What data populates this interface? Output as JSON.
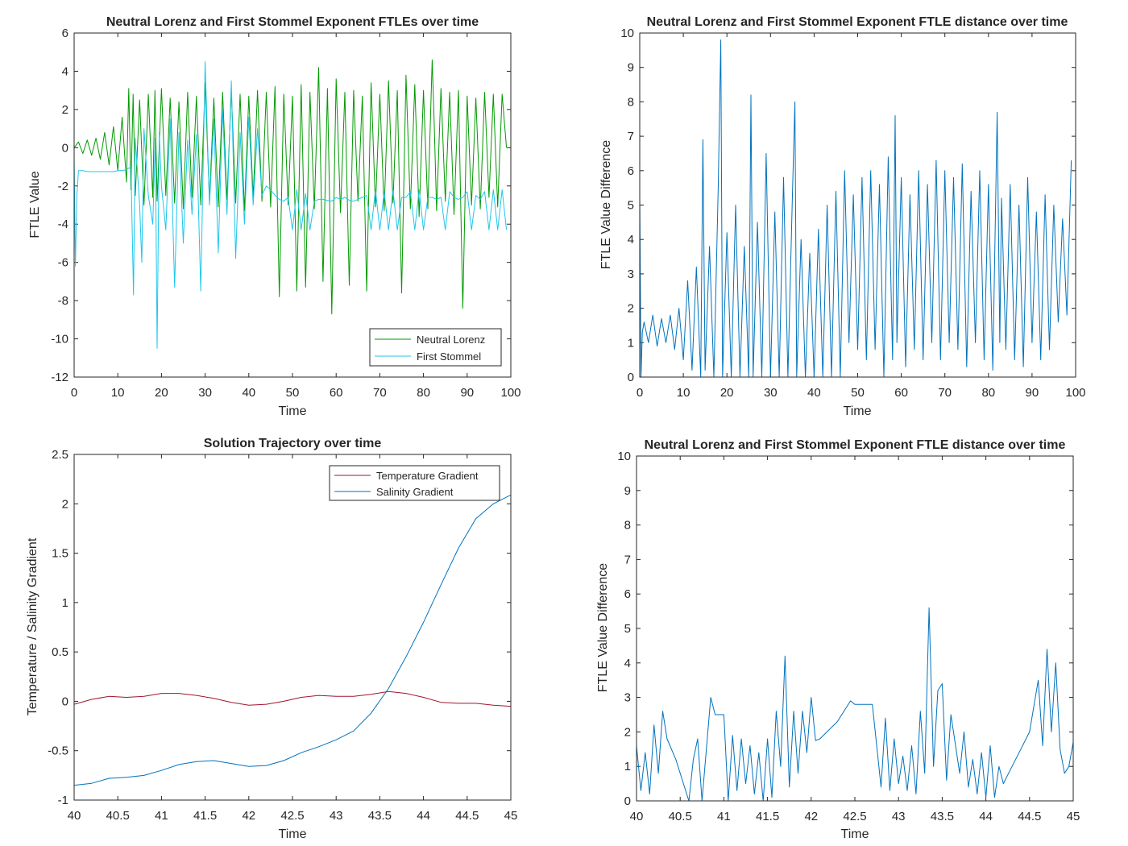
{
  "chart_data": [
    {
      "id": "p1",
      "type": "line",
      "title": "Neutral Lorenz and First Stommel Exponent FTLEs over time",
      "xlabel": "Time",
      "ylabel": "FTLE Value",
      "xlim": [
        0,
        100
      ],
      "ylim": [
        -12,
        6
      ],
      "xticks": [
        0,
        10,
        20,
        30,
        40,
        50,
        60,
        70,
        80,
        90,
        100
      ],
      "yticks": [
        -12,
        -10,
        -8,
        -6,
        -4,
        -2,
        0,
        2,
        4,
        6
      ],
      "legend_position": "bottom-right",
      "series": [
        {
          "name": "Neutral Lorenz",
          "color": "#009900",
          "x": [
            0,
            1,
            2,
            3,
            4,
            5,
            6,
            7,
            8,
            9,
            10,
            11,
            12,
            12.5,
            13,
            13.5,
            14,
            15,
            16,
            17,
            18,
            18.5,
            19,
            20,
            21,
            22,
            23,
            24,
            25,
            26,
            27,
            28,
            29,
            30,
            31,
            32,
            33,
            34,
            35,
            36,
            37,
            38,
            39,
            40,
            41,
            42,
            43,
            44,
            45,
            46,
            47,
            48,
            49,
            50,
            51,
            52,
            53,
            54,
            55,
            56,
            57,
            58,
            59,
            60,
            61,
            62,
            63,
            64,
            65,
            66,
            67,
            68,
            69,
            70,
            71,
            72,
            73,
            74,
            75,
            76,
            77,
            78,
            79,
            80,
            81,
            82,
            82.5,
            83,
            84,
            85,
            86,
            87,
            88,
            89,
            90,
            91,
            92,
            93,
            94,
            95,
            96,
            97,
            98,
            99
          ],
          "values": [
            0,
            0.3,
            -0.3,
            0.4,
            -0.4,
            0.5,
            -0.6,
            0.8,
            -0.9,
            1.1,
            -1.2,
            1.6,
            -1.8,
            3.1,
            -2.2,
            2.8,
            -2.5,
            2.5,
            -3.0,
            2.8,
            -2.6,
            3.0,
            -2.8,
            3.1,
            -2.5,
            2.6,
            -2.9,
            2.4,
            -3.2,
            2.9,
            -2.6,
            2.7,
            -3.0,
            3.4,
            -2.8,
            2.6,
            -3.1,
            2.9,
            -2.7,
            3.0,
            -2.9,
            2.8,
            -3.3,
            2.7,
            -2.6,
            3.0,
            -2.8,
            2.9,
            -3.1,
            3.2,
            -7.8,
            2.8,
            -3.0,
            2.7,
            -7.5,
            3.3,
            -7.3,
            2.9,
            -3.2,
            4.2,
            -7.0,
            3.1,
            -8.7,
            3.6,
            -3.4,
            2.9,
            -7.2,
            3.0,
            -2.8,
            2.7,
            -7.5,
            3.4,
            -3.1,
            2.8,
            -3.3,
            3.5,
            -2.9,
            3.0,
            -7.6,
            3.8,
            -3.2,
            3.3,
            -3.6,
            3.0,
            -3.2,
            4.6,
            1.0,
            -3.3,
            3.1,
            -2.8,
            2.9,
            -3.5,
            3.0,
            -8.4,
            2.7,
            -3.0,
            2.6,
            -3.2,
            2.9,
            -2.6,
            2.8,
            -3.1,
            2.8,
            0
          ]
        },
        {
          "name": "First Stommel",
          "color": "#1fc6ec",
          "x": [
            0,
            0.3,
            0.6,
            1,
            2,
            3,
            4,
            5,
            6,
            7,
            8,
            9,
            10,
            11,
            12,
            13,
            13.6,
            14,
            15,
            15.5,
            16,
            17,
            18,
            18.6,
            19,
            19.5,
            20,
            21,
            22,
            23,
            24,
            25,
            26,
            27,
            28,
            29,
            30,
            31,
            32,
            33,
            34,
            35,
            36,
            37,
            38,
            39,
            40,
            41,
            42,
            43,
            44,
            45,
            46,
            47,
            48,
            49,
            50,
            51,
            52,
            53,
            54,
            55,
            56,
            57,
            58,
            59,
            60,
            61,
            62,
            63,
            64,
            65,
            66,
            67,
            68,
            69,
            70,
            71,
            72,
            73,
            74,
            75,
            76,
            77,
            78,
            79,
            80,
            81,
            82,
            83,
            84,
            85,
            86,
            87,
            88,
            89,
            90,
            91,
            92,
            93,
            94,
            95,
            96,
            97,
            98,
            99
          ],
          "values": [
            -0.5,
            -6.2,
            -2.6,
            -1.2,
            -1.2,
            -1.25,
            -1.25,
            -1.25,
            -1.25,
            -1.25,
            -1.25,
            -1.25,
            -1.2,
            -1.2,
            -1.15,
            -1.0,
            -7.7,
            0.5,
            -3.0,
            -6.0,
            1.0,
            -2.5,
            -4.0,
            0.5,
            -10.5,
            0.8,
            -2.0,
            -4.3,
            1.5,
            -7.3,
            0.8,
            -5.0,
            0.4,
            -3.5,
            0.7,
            -7.5,
            4.5,
            -3.0,
            1.5,
            -5.5,
            2.0,
            -3.5,
            3.5,
            -5.8,
            0.8,
            -4.0,
            1.6,
            -3.0,
            1.0,
            -2.5,
            -2.0,
            -2.2,
            -2.5,
            -2.7,
            -2.8,
            -2.6,
            -4.3,
            -2.2,
            -4.3,
            -2.4,
            -4.3,
            -2.8,
            -2.7,
            -2.7,
            -2.75,
            -2.8,
            -2.6,
            -2.7,
            -2.6,
            -2.75,
            -2.8,
            -2.7,
            -2.6,
            -2.5,
            -4.3,
            -2.2,
            -4.3,
            -2.3,
            -4.3,
            -2.2,
            -4.3,
            -2.6,
            -2.6,
            -2.3,
            -4.3,
            -2.2,
            -4.3,
            -2.6,
            -2.6,
            -2.7,
            -2.6,
            -4.3,
            -2.3,
            -2.6,
            -2.7,
            -2.6,
            -2.3,
            -4.3,
            -2.5,
            -2.7,
            -2.3,
            -4.3,
            -2.2,
            -4.3,
            -2.2,
            -4.3
          ]
        }
      ]
    },
    {
      "id": "p2",
      "type": "line",
      "title": "Neutral Lorenz and First Stommel Exponent FTLE distance over time",
      "xlabel": "Time",
      "ylabel": "FTLE Value Difference",
      "xlim": [
        0,
        100
      ],
      "ylim": [
        0,
        10
      ],
      "xticks": [
        0,
        10,
        20,
        30,
        40,
        50,
        60,
        70,
        80,
        90,
        100
      ],
      "yticks": [
        0,
        1,
        2,
        3,
        4,
        5,
        6,
        7,
        8,
        9,
        10
      ],
      "series": [
        {
          "name": "FTLE distance",
          "color": "#0072bd",
          "x": [
            0,
            0.3,
            0.6,
            1,
            2,
            3,
            4,
            5,
            6,
            7,
            8,
            9,
            10,
            11,
            12,
            13,
            14,
            14.5,
            15,
            16,
            17,
            18,
            18.6,
            19,
            20,
            21,
            22,
            23,
            24,
            25,
            25.5,
            26,
            27,
            28,
            29,
            30,
            31,
            32,
            33,
            34,
            35,
            35.6,
            36,
            37,
            38,
            39,
            40,
            41,
            42,
            43,
            44,
            45,
            46,
            47,
            48,
            49,
            50,
            51,
            52,
            53,
            54,
            55,
            56,
            57,
            58,
            58.6,
            59,
            60,
            61,
            62,
            63,
            64,
            65,
            66,
            67,
            68,
            69,
            70,
            71,
            72,
            73,
            74,
            75,
            76,
            77,
            78,
            79,
            80,
            81,
            82,
            82.6,
            83,
            84,
            85,
            86,
            87,
            88,
            89,
            90,
            91,
            92,
            93,
            94,
            95,
            96,
            97,
            98,
            99
          ],
          "values": [
            5.3,
            0,
            1.3,
            1.6,
            1.0,
            1.8,
            0.9,
            1.7,
            1.0,
            1.8,
            0.8,
            2.0,
            0.5,
            2.8,
            0.2,
            3.2,
            0,
            6.9,
            0.2,
            3.8,
            0,
            5.5,
            9.8,
            0,
            4.2,
            0,
            5.0,
            0,
            3.8,
            0,
            8.2,
            0,
            4.5,
            0,
            6.5,
            0,
            4.8,
            0,
            5.8,
            0,
            5.2,
            8.0,
            0,
            4.0,
            0,
            3.6,
            0,
            4.3,
            0,
            5.0,
            0,
            5.4,
            0,
            6.0,
            1.0,
            5.3,
            0.8,
            5.8,
            0.5,
            6.0,
            0.8,
            5.6,
            0,
            6.4,
            0.5,
            7.6,
            1.0,
            5.8,
            0.3,
            5.3,
            0.8,
            6.0,
            0.5,
            5.6,
            1.0,
            6.3,
            0.5,
            6.0,
            1.0,
            5.8,
            0.8,
            6.2,
            0.3,
            5.4,
            1.0,
            6.0,
            0.5,
            5.6,
            0.2,
            7.7,
            1.0,
            5.2,
            0.8,
            5.6,
            0.5,
            5.0,
            0.3,
            5.8,
            1.0,
            4.8,
            0.5,
            5.3,
            0.8,
            5.0,
            1.6,
            4.6,
            1.8,
            6.3
          ]
        }
      ]
    },
    {
      "id": "p3",
      "type": "line",
      "title": "Solution Trajectory over time",
      "xlabel": "Time",
      "ylabel": "Temperature / Salinity Gradient",
      "xlim": [
        40,
        45
      ],
      "ylim": [
        -1,
        2.5
      ],
      "xticks": [
        40,
        40.5,
        41,
        41.5,
        42,
        42.5,
        43,
        43.5,
        44,
        44.5,
        45
      ],
      "yticks": [
        -1,
        -0.5,
        0,
        0.5,
        1,
        1.5,
        2,
        2.5
      ],
      "legend_position": "top-right",
      "series": [
        {
          "name": "Temperature Gradient",
          "color": "#a2142f",
          "x": [
            40,
            40.2,
            40.4,
            40.6,
            40.8,
            41,
            41.2,
            41.4,
            41.6,
            41.8,
            42,
            42.2,
            42.4,
            42.6,
            42.8,
            43,
            43.2,
            43.4,
            43.6,
            43.8,
            44,
            44.2,
            44.4,
            44.6,
            44.8,
            45
          ],
          "values": [
            -0.03,
            0.02,
            0.05,
            0.04,
            0.05,
            0.08,
            0.08,
            0.06,
            0.03,
            -0.01,
            -0.04,
            -0.03,
            0.0,
            0.04,
            0.06,
            0.05,
            0.05,
            0.07,
            0.1,
            0.08,
            0.04,
            -0.01,
            -0.02,
            -0.02,
            -0.04,
            -0.05
          ]
        },
        {
          "name": "Salinity Gradient",
          "color": "#0072bd",
          "x": [
            40,
            40.2,
            40.4,
            40.6,
            40.8,
            41,
            41.2,
            41.4,
            41.6,
            41.8,
            42,
            42.2,
            42.4,
            42.6,
            42.8,
            43,
            43.2,
            43.4,
            43.6,
            43.8,
            44,
            44.2,
            44.4,
            44.6,
            44.8,
            45
          ],
          "values": [
            -0.85,
            -0.83,
            -0.78,
            -0.77,
            -0.75,
            -0.7,
            -0.64,
            -0.61,
            -0.6,
            -0.63,
            -0.66,
            -0.65,
            -0.6,
            -0.52,
            -0.46,
            -0.39,
            -0.3,
            -0.12,
            0.13,
            0.45,
            0.8,
            1.18,
            1.55,
            1.85,
            2.0,
            2.09
          ]
        }
      ]
    },
    {
      "id": "p4",
      "type": "line",
      "title": "Neutral Lorenz and First Stommel Exponent FTLE distance over time",
      "xlabel": "Time",
      "ylabel": "FTLE Value Difference",
      "xlim": [
        40,
        45
      ],
      "ylim": [
        0,
        10
      ],
      "xticks": [
        40,
        40.5,
        41,
        41.5,
        42,
        42.5,
        43,
        43.5,
        44,
        44.5,
        45
      ],
      "yticks": [
        0,
        1,
        2,
        3,
        4,
        5,
        6,
        7,
        8,
        9,
        10
      ],
      "series": [
        {
          "name": "FTLE distance",
          "color": "#0072bd",
          "x": [
            40,
            40.05,
            40.1,
            40.15,
            40.2,
            40.25,
            40.3,
            40.35,
            40.45,
            40.55,
            40.6,
            40.65,
            40.7,
            40.75,
            40.8,
            40.85,
            40.9,
            40.95,
            41.0,
            41.05,
            41.1,
            41.15,
            41.2,
            41.25,
            41.3,
            41.35,
            41.4,
            41.45,
            41.5,
            41.55,
            41.6,
            41.65,
            41.7,
            41.75,
            41.8,
            41.85,
            41.9,
            41.95,
            42.0,
            42.05,
            42.1,
            42.3,
            42.45,
            42.5,
            42.55,
            42.6,
            42.7,
            42.8,
            42.85,
            42.9,
            42.95,
            43.0,
            43.05,
            43.1,
            43.15,
            43.2,
            43.25,
            43.3,
            43.35,
            43.4,
            43.45,
            43.5,
            43.55,
            43.6,
            43.7,
            43.75,
            43.8,
            43.85,
            43.9,
            43.95,
            44.0,
            44.05,
            44.1,
            44.15,
            44.2,
            44.3,
            44.4,
            44.5,
            44.6,
            44.65,
            44.7,
            44.75,
            44.8,
            44.85,
            44.9,
            44.95,
            45
          ],
          "values": [
            1.6,
            0.3,
            1.4,
            0.2,
            2.2,
            0.8,
            2.6,
            1.8,
            1.2,
            0.4,
            0,
            1.2,
            1.8,
            0,
            1.5,
            3.0,
            2.5,
            2.5,
            2.5,
            0,
            1.9,
            0.3,
            1.8,
            0.5,
            1.6,
            0.2,
            1.4,
            0,
            1.8,
            0.1,
            2.6,
            1.0,
            4.2,
            0.4,
            2.6,
            0.8,
            2.6,
            1.4,
            3.0,
            1.75,
            1.8,
            2.3,
            2.9,
            2.8,
            2.8,
            2.8,
            2.8,
            0.4,
            2.4,
            0.3,
            1.8,
            0.5,
            1.3,
            0.3,
            1.6,
            0.2,
            2.6,
            0.8,
            5.6,
            1.0,
            3.2,
            3.4,
            0.6,
            2.5,
            0.8,
            2.0,
            0.4,
            1.2,
            0.2,
            1.4,
            0.1,
            1.6,
            0.1,
            1.0,
            0.5,
            1.0,
            1.5,
            2.0,
            3.5,
            1.6,
            4.4,
            2.0,
            4.0,
            1.5,
            0.8,
            1.0,
            1.7
          ]
        }
      ]
    }
  ]
}
